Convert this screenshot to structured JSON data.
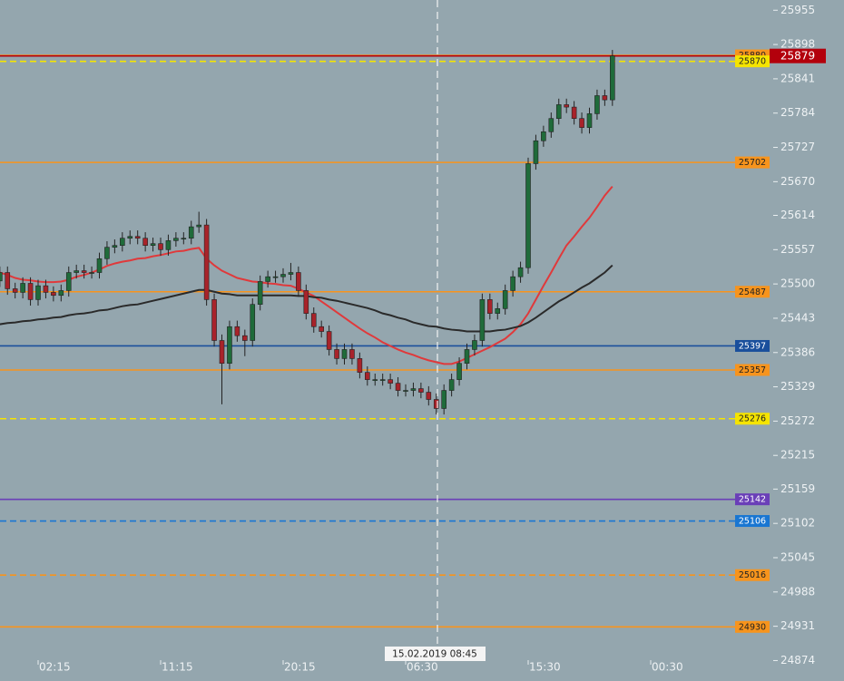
{
  "chart_data": {
    "type": "candlestick",
    "categories": [
      null,
      null,
      null,
      null,
      null,
      "02:15",
      null,
      null,
      null,
      null,
      null,
      null,
      null,
      null,
      null,
      null,
      null,
      null,
      null,
      null,
      null,
      "11:15",
      null,
      null,
      null,
      null,
      null,
      null,
      null,
      null,
      null,
      null,
      null,
      null,
      null,
      null,
      null,
      "20:15",
      null,
      null,
      null,
      null,
      null,
      null,
      null,
      null,
      null,
      null,
      null,
      null,
      null,
      null,
      null,
      "06:30",
      null,
      null,
      null,
      null,
      null,
      null,
      null,
      null,
      null,
      null,
      null,
      null,
      null,
      null,
      null,
      "15:30",
      null,
      null,
      null,
      null,
      null,
      null,
      null,
      null,
      null,
      null,
      null,
      null,
      null,
      null,
      null,
      "00:30"
    ],
    "open": [
      25505,
      25519,
      25492,
      25486,
      25501,
      25474,
      25497,
      25486,
      25481,
      25489,
      25519,
      25522,
      25519,
      25519,
      25542,
      25561,
      25564,
      25576,
      25579,
      25576,
      25564,
      25567,
      25557,
      25572,
      25576,
      25576,
      25595,
      25598,
      25474,
      25406,
      25368,
      25429,
      25414,
      25406,
      25466,
      25504,
      25512,
      25512,
      25516,
      25519,
      25489,
      25451,
      25429,
      25421,
      25391,
      25376,
      25391,
      25376,
      25353,
      25341,
      25341,
      25341,
      25335,
      25323,
      25323,
      25326,
      25320,
      25308,
      25293,
      25323,
      25341,
      25368,
      25391,
      25406,
      25474,
      25451,
      25459,
      25489,
      25512,
      25527,
      25700,
      25738,
      25753,
      25775,
      25798,
      25794,
      25775,
      25760,
      25783,
      25813,
      25806,
      null,
      null,
      null,
      null,
      null
    ],
    "high": [
      25529,
      25529,
      25502,
      25511,
      25511,
      25507,
      25507,
      25496,
      25499,
      25529,
      25532,
      25532,
      25529,
      25552,
      25571,
      25574,
      25586,
      25589,
      25589,
      25586,
      25577,
      25577,
      25582,
      25586,
      25586,
      25605,
      25620,
      25608,
      25484,
      25416,
      25439,
      25439,
      25424,
      25476,
      25514,
      25522,
      25522,
      25526,
      25535,
      25529,
      25499,
      25461,
      25439,
      25431,
      25401,
      25401,
      25401,
      25386,
      25363,
      25351,
      25351,
      25351,
      25345,
      25333,
      25336,
      25336,
      25330,
      25318,
      25333,
      25351,
      25378,
      25401,
      25416,
      25484,
      25484,
      25469,
      25499,
      25522,
      25537,
      25710,
      25748,
      25763,
      25785,
      25808,
      25808,
      25804,
      25785,
      25793,
      25823,
      25823,
      25889,
      null,
      null,
      null,
      null,
      null
    ],
    "low": [
      25495,
      25482,
      25476,
      25476,
      25464,
      25464,
      25476,
      25471,
      25471,
      25479,
      25509,
      25509,
      25509,
      25509,
      25532,
      25551,
      25554,
      25566,
      25566,
      25554,
      25554,
      25547,
      25547,
      25562,
      25566,
      25566,
      25585,
      25464,
      25396,
      25300,
      25358,
      25404,
      25380,
      25396,
      25456,
      25494,
      25502,
      25502,
      25506,
      25479,
      25441,
      25419,
      25411,
      25381,
      25366,
      25366,
      25366,
      25343,
      25331,
      25331,
      25331,
      25325,
      25313,
      25313,
      25313,
      25310,
      25298,
      25283,
      25283,
      25313,
      25331,
      25358,
      25381,
      25396,
      25441,
      25441,
      25449,
      25479,
      25502,
      25517,
      25690,
      25728,
      25743,
      25765,
      25784,
      25765,
      25750,
      25750,
      25773,
      25796,
      25796,
      null,
      null,
      null,
      null,
      null
    ],
    "close": [
      25519,
      25492,
      25486,
      25501,
      25474,
      25497,
      25486,
      25481,
      25489,
      25519,
      25522,
      25519,
      25519,
      25542,
      25561,
      25564,
      25576,
      25579,
      25576,
      25564,
      25567,
      25557,
      25572,
      25576,
      25576,
      25595,
      25598,
      25474,
      25406,
      25368,
      25429,
      25414,
      25406,
      25466,
      25504,
      25512,
      25512,
      25516,
      25519,
      25489,
      25451,
      25429,
      25421,
      25391,
      25376,
      25391,
      25376,
      25353,
      25341,
      25341,
      25341,
      25335,
      25323,
      25323,
      25326,
      25320,
      25308,
      25293,
      25323,
      25341,
      25368,
      25391,
      25406,
      25474,
      25451,
      25459,
      25489,
      25512,
      25527,
      25700,
      25738,
      25753,
      25775,
      25798,
      25794,
      25775,
      25760,
      25783,
      25813,
      25806,
      25879,
      null,
      null,
      null,
      null,
      null
    ],
    "up_color": "#1f6b3a",
    "down_color": "#a8232a",
    "wick_color": "#222222",
    "series": [
      {
        "color": "#e0393b",
        "values": [
          25519,
          25515,
          25510,
          25507,
          25506,
          25504,
          25503,
          25503,
          25504,
          25507,
          25512,
          25515,
          25519,
          25524,
          25530,
          25534,
          25537,
          25539,
          25542,
          25543,
          25546,
          25548,
          25551,
          25554,
          25555,
          25558,
          25560,
          25542,
          25531,
          25522,
          25516,
          25510,
          25507,
          25504,
          25503,
          25501,
          25500,
          25498,
          25497,
          25492,
          25486,
          25480,
          25471,
          25462,
          25453,
          25444,
          25435,
          25426,
          25418,
          25411,
          25403,
          25397,
          25391,
          25386,
          25382,
          25377,
          25373,
          25370,
          25367,
          25367,
          25371,
          25377,
          25383,
          25389,
          25395,
          25402,
          25409,
          25420,
          25433,
          25451,
          25474,
          25497,
          25519,
          25542,
          25564,
          25579,
          25595,
          25610,
          25628,
          25647,
          25662,
          null,
          null,
          null,
          null,
          null
        ]
      },
      {
        "color": "#2a2a2a",
        "values": [
          25433,
          25435,
          25436,
          25438,
          25439,
          25441,
          25442,
          25444,
          25445,
          25448,
          25450,
          25451,
          25453,
          25456,
          25457,
          25460,
          25463,
          25465,
          25466,
          25469,
          25472,
          25475,
          25478,
          25481,
          25484,
          25487,
          25490,
          25490,
          25487,
          25484,
          25483,
          25481,
          25481,
          25481,
          25481,
          25481,
          25481,
          25481,
          25481,
          25480,
          25480,
          25478,
          25477,
          25474,
          25472,
          25469,
          25466,
          25463,
          25460,
          25456,
          25451,
          25448,
          25444,
          25441,
          25436,
          25433,
          25430,
          25429,
          25426,
          25424,
          25423,
          25421,
          25421,
          25421,
          25421,
          25423,
          25424,
          25427,
          25430,
          25436,
          25444,
          25453,
          25462,
          25471,
          25478,
          25486,
          25494,
          25501,
          25510,
          25519,
          25531,
          null,
          null,
          null,
          null,
          null
        ]
      }
    ],
    "levels": [
      {
        "value": 25880,
        "color": "#f7941d",
        "label_color": "#222222",
        "dash": false
      },
      {
        "value": 25870,
        "color": "#f5e400",
        "label_color": "#222222",
        "dash": true
      },
      {
        "value": 25702,
        "color": "#f7941d",
        "label_color": "#222222",
        "dash": false
      },
      {
        "value": 25487,
        "color": "#f7941d",
        "label_color": "#222222",
        "dash": false
      },
      {
        "value": 25397,
        "color": "#1a4f9c",
        "label_color": "#ffffff",
        "dash": false
      },
      {
        "value": 25357,
        "color": "#f7941d",
        "label_color": "#222222",
        "dash": false
      },
      {
        "value": 25276,
        "color": "#f5e400",
        "label_color": "#222222",
        "dash": true
      },
      {
        "value": 25142,
        "color": "#6a3fb8",
        "label_color": "#ffffff",
        "dash": false
      },
      {
        "value": 25106,
        "color": "#1976d2",
        "label_color": "#ffffff",
        "dash": true
      },
      {
        "value": 25016,
        "color": "#f7941d",
        "label_color": "#222222",
        "dash": true
      },
      {
        "value": 24930,
        "color": "#f7941d",
        "label_color": "#222222",
        "dash": false
      }
    ],
    "price_line": {
      "value": 25879,
      "color": "#b3000c"
    },
    "crosshair_label": "15.02.2019 08:45",
    "ylim": [
      24840,
      25972
    ],
    "yticks": [
      25955,
      25898,
      25841,
      25784,
      25727,
      25670,
      25614,
      25557,
      25500,
      25443,
      25386,
      25329,
      25272,
      25215,
      25159,
      25102,
      25045,
      24988,
      24931,
      24874
    ]
  }
}
